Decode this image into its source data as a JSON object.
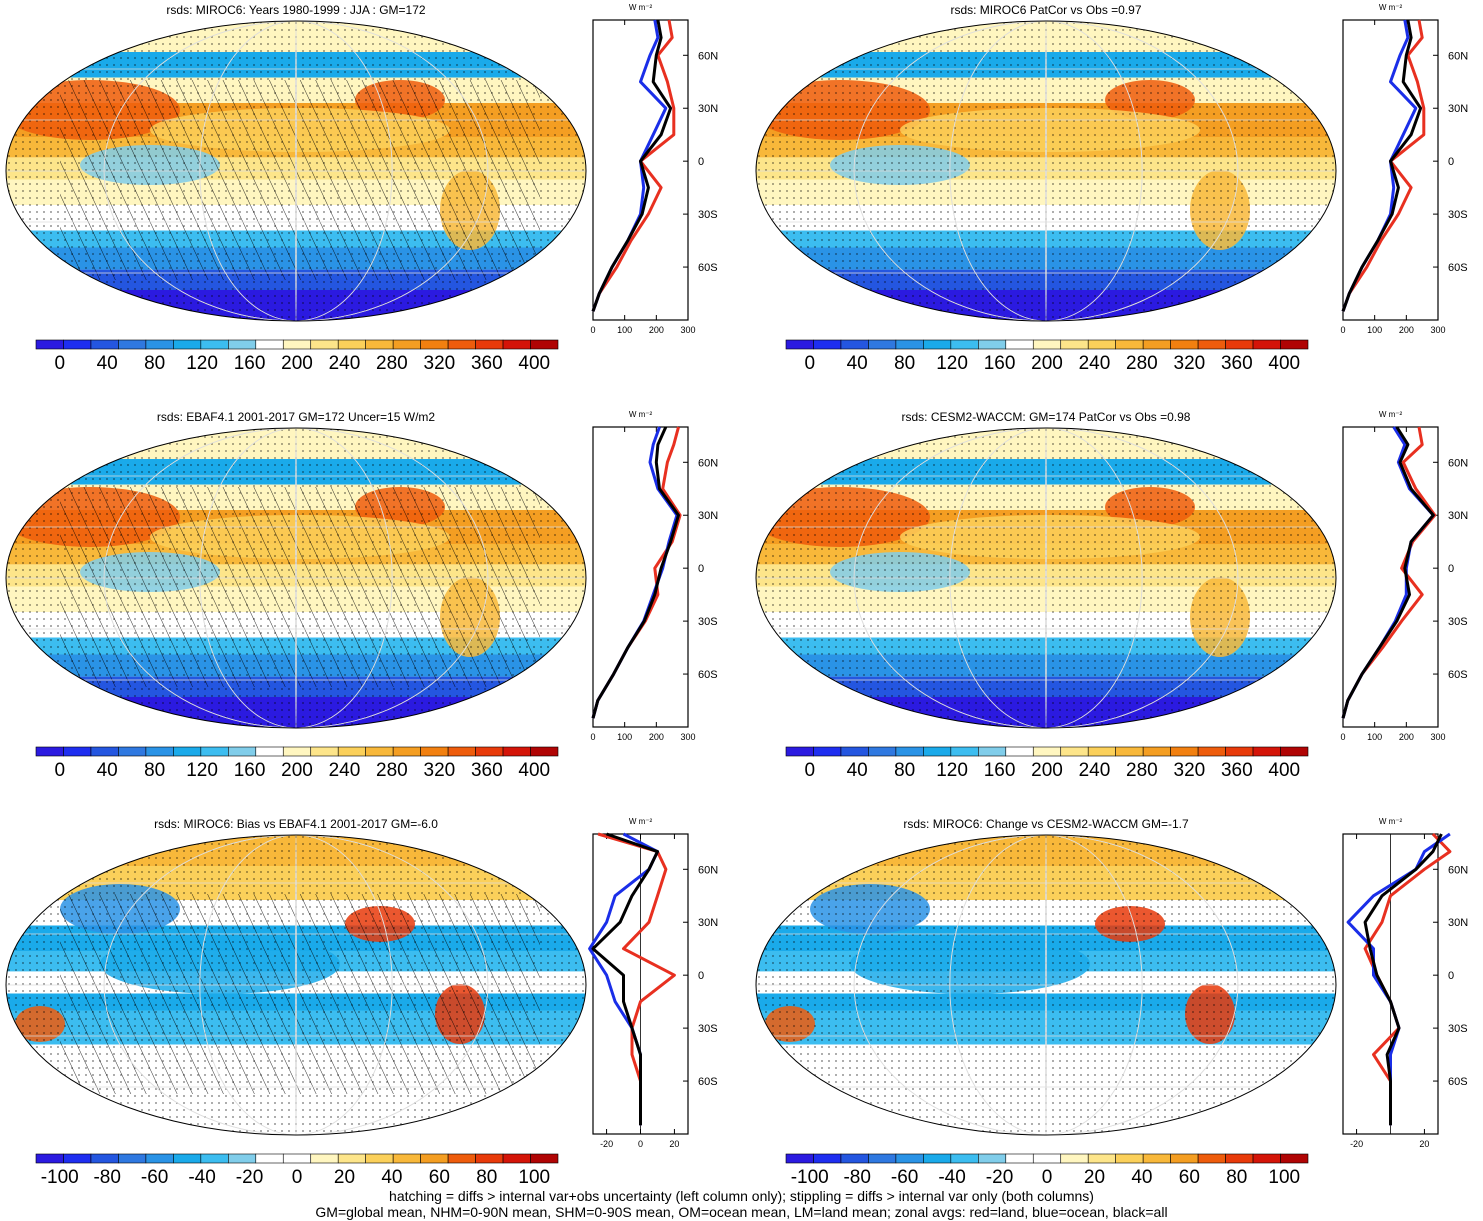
{
  "colors": {
    "ramp_abs": [
      "#2b1ae0",
      "#1e2ef0",
      "#2456e0",
      "#2f78e0",
      "#2a93e6",
      "#1aaaea",
      "#3cbdf0",
      "#80cdea",
      "#ffffff",
      "#fff6c0",
      "#fde58a",
      "#fbd05a",
      "#f8b83a",
      "#f49e22",
      "#f28010",
      "#ee5c0c",
      "#e83a0a",
      "#d41408",
      "#b00404"
    ],
    "ramp_diff": [
      "#2b1ae0",
      "#1e2ef0",
      "#2456e0",
      "#2f78e0",
      "#2a93e6",
      "#1aaaea",
      "#3cbdf0",
      "#80cdea",
      "#ffffff",
      "#ffffff",
      "#fff6c0",
      "#fde58a",
      "#fbd05a",
      "#f8b83a",
      "#f49e22",
      "#ee5c0c",
      "#e83a0a",
      "#d41408",
      "#b00404"
    ],
    "land": "#e83020",
    "ocean": "#1a2ee8",
    "all": "#000000"
  },
  "panels": [
    {
      "id": "miroc6-clim",
      "title": "rsds: MIROC6: Years 1980-1999 : JJA : GM=172",
      "colorbar": [
        "0",
        "40",
        "80",
        "120",
        "160",
        "200",
        "240",
        "280",
        "320",
        "360",
        "400"
      ],
      "zonal_ticks": [
        "0",
        "100",
        "200",
        "300"
      ],
      "zonal_unit": "W m⁻²",
      "lat_labels": [
        "60N",
        "30N",
        "0",
        "30S",
        "60S"
      ],
      "hatched": true
    },
    {
      "id": "miroc6-patcor",
      "title": "rsds: MIROC6 PatCor vs Obs =0.97",
      "colorbar": [
        "0",
        "40",
        "80",
        "120",
        "160",
        "200",
        "240",
        "280",
        "320",
        "360",
        "400"
      ],
      "zonal_ticks": [
        "0",
        "100",
        "200",
        "300"
      ],
      "zonal_unit": "W m⁻²",
      "lat_labels": [
        "60N",
        "30N",
        "0",
        "30S",
        "60S"
      ],
      "hatched": false
    },
    {
      "id": "ebaf-obs",
      "title": "rsds: EBAF4.1 2001-2017 GM=172 Uncer=15 W/m2",
      "colorbar": [
        "0",
        "40",
        "80",
        "120",
        "160",
        "200",
        "240",
        "280",
        "320",
        "360",
        "400"
      ],
      "zonal_ticks": [
        "0",
        "100",
        "200",
        "300"
      ],
      "zonal_unit": "W m⁻²",
      "lat_labels": [
        "60N",
        "30N",
        "0",
        "30S",
        "60S"
      ],
      "hatched": true
    },
    {
      "id": "cesm2-waccm",
      "title": "rsds: CESM2-WACCM: GM=174 PatCor vs Obs =0.98",
      "colorbar": [
        "0",
        "40",
        "80",
        "120",
        "160",
        "200",
        "240",
        "280",
        "320",
        "360",
        "400"
      ],
      "zonal_ticks": [
        "0",
        "100",
        "200",
        "300"
      ],
      "zonal_unit": "W m⁻²",
      "lat_labels": [
        "60N",
        "30N",
        "0",
        "30S",
        "60S"
      ],
      "hatched": false
    },
    {
      "id": "miroc6-bias",
      "title": "rsds: MIROC6: Bias vs EBAF4.1 2001-2017 GM=-6.0",
      "colorbar": [
        "-100",
        "-80",
        "-60",
        "-40",
        "-20",
        "0",
        "20",
        "40",
        "60",
        "80",
        "100"
      ],
      "zonal_ticks": [
        "-20",
        "0",
        "20"
      ],
      "zonal_unit": "W m⁻²",
      "lat_labels": [
        "60N",
        "30N",
        "0",
        "30S",
        "60S"
      ],
      "hatched": true
    },
    {
      "id": "miroc6-change",
      "title": "rsds: MIROC6: Change vs CESM2-WACCM GM=-1.7",
      "colorbar": [
        "-100",
        "-80",
        "-60",
        "-40",
        "-20",
        "0",
        "20",
        "40",
        "60",
        "80",
        "100"
      ],
      "zonal_ticks": [
        "-20",
        "20"
      ],
      "zonal_unit": "W m⁻²",
      "lat_labels": [
        "60N",
        "30N",
        "0",
        "30S",
        "60S"
      ],
      "hatched": false
    }
  ],
  "chart_data": [
    {
      "type": "line",
      "title": "rsds: MIROC6: Years 1980-1999 : JJA : GM=172",
      "xlim": [
        0,
        300
      ],
      "y": [
        80,
        70,
        60,
        45,
        30,
        15,
        0,
        -15,
        -30,
        -45,
        -60,
        -75,
        -85
      ],
      "series": [
        {
          "name": "red=land",
          "values": [
            240,
            250,
            205,
            235,
            255,
            255,
            150,
            215,
            175,
            120,
            75,
            20,
            0
          ]
        },
        {
          "name": "blue=ocean",
          "values": [
            195,
            205,
            180,
            150,
            230,
            190,
            150,
            160,
            150,
            110,
            60,
            20,
            0
          ]
        },
        {
          "name": "black=all",
          "values": [
            205,
            215,
            200,
            190,
            245,
            215,
            150,
            175,
            155,
            110,
            60,
            20,
            0
          ]
        }
      ]
    },
    {
      "type": "line",
      "title": "rsds: MIROC6 PatCor vs Obs =0.97",
      "xlim": [
        0,
        300
      ],
      "y": [
        80,
        70,
        60,
        45,
        30,
        15,
        0,
        -15,
        -30,
        -45,
        -60,
        -75,
        -85
      ],
      "series": [
        {
          "name": "red=land",
          "values": [
            240,
            250,
            205,
            235,
            255,
            255,
            150,
            215,
            175,
            120,
            75,
            20,
            0
          ]
        },
        {
          "name": "blue=ocean",
          "values": [
            195,
            205,
            180,
            150,
            230,
            190,
            150,
            160,
            150,
            110,
            60,
            20,
            0
          ]
        },
        {
          "name": "black=all",
          "values": [
            205,
            215,
            200,
            190,
            245,
            215,
            150,
            175,
            155,
            110,
            60,
            20,
            0
          ]
        }
      ]
    },
    {
      "type": "line",
      "title": "rsds: EBAF4.1 2001-2017 GM=172 Uncer=15 W/m2",
      "xlim": [
        0,
        300
      ],
      "y": [
        80,
        70,
        60,
        45,
        30,
        15,
        0,
        -15,
        -30,
        -45,
        -60,
        -75,
        -85
      ],
      "series": [
        {
          "name": "red=land",
          "values": [
            270,
            255,
            235,
            220,
            275,
            250,
            195,
            205,
            165,
            110,
            65,
            15,
            0
          ]
        },
        {
          "name": "blue=ocean",
          "values": [
            210,
            190,
            180,
            205,
            265,
            240,
            220,
            190,
            160,
            110,
            65,
            15,
            0
          ]
        },
        {
          "name": "black=all",
          "values": [
            230,
            205,
            200,
            210,
            270,
            245,
            215,
            195,
            162,
            110,
            65,
            15,
            0
          ]
        }
      ]
    },
    {
      "type": "line",
      "title": "rsds: CESM2-WACCM: GM=174 PatCor vs Obs =0.98",
      "xlim": [
        0,
        300
      ],
      "y": [
        80,
        70,
        60,
        45,
        30,
        15,
        0,
        -15,
        -30,
        -45,
        -60,
        -75,
        -85
      ],
      "series": [
        {
          "name": "red=land",
          "values": [
            240,
            250,
            190,
            230,
            290,
            220,
            185,
            250,
            185,
            125,
            60,
            15,
            0
          ]
        },
        {
          "name": "blue=ocean",
          "values": [
            160,
            195,
            175,
            210,
            285,
            215,
            200,
            200,
            165,
            115,
            60,
            15,
            0
          ]
        },
        {
          "name": "black=all",
          "values": [
            170,
            205,
            180,
            215,
            285,
            215,
            195,
            210,
            170,
            115,
            60,
            15,
            0
          ]
        }
      ]
    },
    {
      "type": "line",
      "title": "rsds: MIROC6: Bias vs EBAF4.1 2001-2017 GM=-6.0",
      "xlim": [
        -28,
        28
      ],
      "y": [
        80,
        70,
        60,
        45,
        30,
        15,
        0,
        -15,
        -30,
        -45,
        -60,
        -75,
        -85
      ],
      "series": [
        {
          "name": "red=land",
          "values": [
            -25,
            10,
            15,
            10,
            5,
            -10,
            20,
            0,
            -5,
            -5,
            0,
            0,
            0
          ],
          "extra": "noisy"
        },
        {
          "name": "blue=ocean",
          "values": [
            -10,
            10,
            5,
            -15,
            -20,
            -30,
            -20,
            -15,
            -5,
            0,
            0,
            0,
            0
          ]
        },
        {
          "name": "black=all",
          "values": [
            -20,
            10,
            5,
            -5,
            -12,
            -28,
            -10,
            -10,
            -5,
            0,
            0,
            0,
            0
          ]
        }
      ]
    },
    {
      "type": "line",
      "title": "rsds: MIROC6: Change vs CESM2-WACCM GM=-1.7",
      "xlim": [
        -28,
        28
      ],
      "y": [
        80,
        70,
        60,
        45,
        30,
        15,
        0,
        -15,
        -30,
        -45,
        -60,
        -75,
        -85
      ],
      "series": [
        {
          "name": "red=land",
          "values": [
            25,
            35,
            20,
            0,
            -5,
            -15,
            -8,
            0,
            5,
            -10,
            0,
            0,
            0
          ]
        },
        {
          "name": "blue=ocean",
          "values": [
            35,
            20,
            15,
            -10,
            -25,
            -10,
            -10,
            0,
            5,
            0,
            0,
            0,
            0
          ]
        },
        {
          "name": "black=all",
          "values": [
            30,
            25,
            15,
            -5,
            -15,
            -12,
            -8,
            0,
            5,
            -2,
            0,
            0,
            0
          ]
        }
      ]
    }
  ],
  "footer": {
    "line1": "hatching = diffs > internal var+obs uncertainty (left column only); stippling = diffs > internal var only (both columns)",
    "line2": "GM=global mean, NHM=0-90N mean, SHM=0-90S mean, OM=ocean mean, LM=land mean; zonal avgs: red=land, blue=ocean, black=all"
  }
}
